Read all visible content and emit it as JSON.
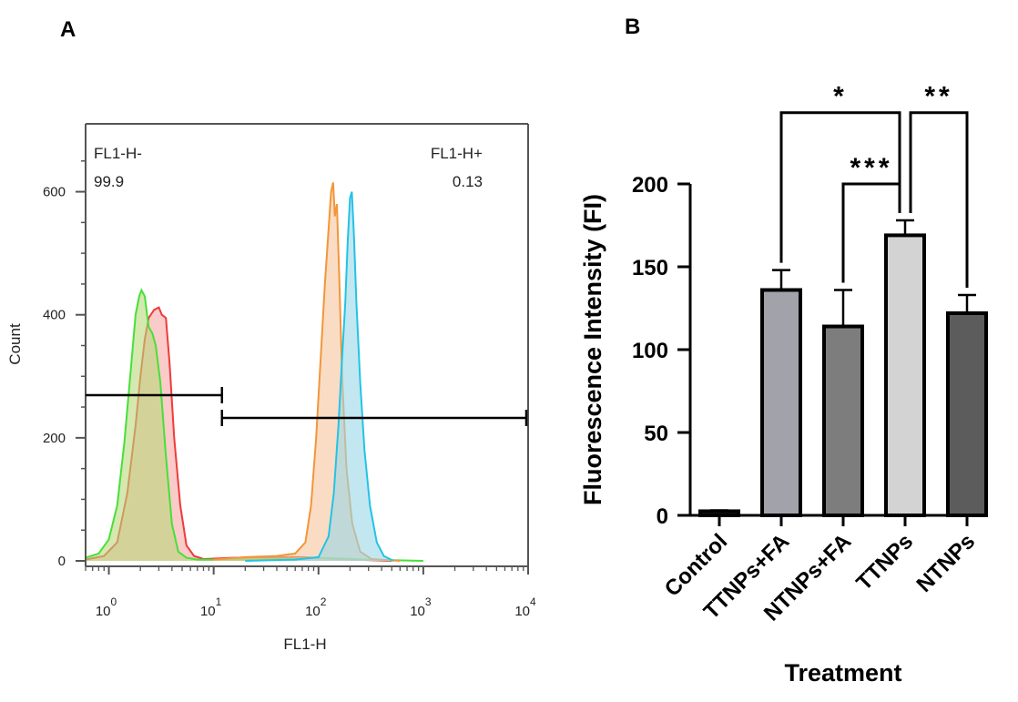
{
  "panels": {
    "a_label": "A",
    "b_label": "B"
  },
  "chart_data": [
    {
      "type": "area",
      "xlabel": "FL1-H",
      "ylabel": "Count",
      "x_scale": "log",
      "xlim": [
        0.6,
        10000
      ],
      "ylim": [
        0,
        700
      ],
      "x_ticks": [
        {
          "value": 1,
          "base": "10",
          "exp": "0"
        },
        {
          "value": 10,
          "base": "10",
          "exp": "1"
        },
        {
          "value": 100,
          "base": "10",
          "exp": "2"
        },
        {
          "value": 1000,
          "base": "10",
          "exp": "3"
        },
        {
          "value": 10000,
          "base": "10",
          "exp": "4"
        }
      ],
      "y_ticks": [
        0,
        200,
        400,
        600
      ],
      "gates": [
        {
          "label": "FL1-H-",
          "value": "99.9",
          "range": [
            0.6,
            12
          ]
        },
        {
          "label": "FL1-H+",
          "value": "0.13",
          "range": [
            12,
            10000
          ]
        }
      ],
      "series": [
        {
          "color": "#ee3b3b",
          "fill": "#f7a8a4",
          "points": [
            [
              0.6,
              2
            ],
            [
              0.9,
              8
            ],
            [
              1.2,
              30
            ],
            [
              1.5,
              110
            ],
            [
              1.8,
              220
            ],
            [
              2.0,
              300
            ],
            [
              2.2,
              360
            ],
            [
              2.4,
              395
            ],
            [
              2.7,
              408
            ],
            [
              3.0,
              412
            ],
            [
              3.2,
              400
            ],
            [
              3.5,
              395
            ],
            [
              3.8,
              320
            ],
            [
              4.2,
              200
            ],
            [
              4.8,
              90
            ],
            [
              5.5,
              25
            ],
            [
              6.5,
              8
            ],
            [
              8,
              3
            ],
            [
              15,
              5
            ],
            [
              30,
              6
            ],
            [
              70,
              6
            ],
            [
              150,
              3
            ],
            [
              500,
              0
            ]
          ]
        },
        {
          "color": "#46e03a",
          "fill": "#b9d87a",
          "points": [
            [
              0.6,
              5
            ],
            [
              0.8,
              12
            ],
            [
              1.0,
              35
            ],
            [
              1.2,
              90
            ],
            [
              1.4,
              190
            ],
            [
              1.6,
              300
            ],
            [
              1.8,
              400
            ],
            [
              1.95,
              430
            ],
            [
              2.05,
              440
            ],
            [
              2.2,
              430
            ],
            [
              2.4,
              380
            ],
            [
              2.6,
              370
            ],
            [
              2.8,
              350
            ],
            [
              3.1,
              290
            ],
            [
              3.5,
              170
            ],
            [
              4.0,
              60
            ],
            [
              4.6,
              15
            ],
            [
              5.5,
              5
            ],
            [
              7,
              2
            ],
            [
              20,
              2
            ],
            [
              100,
              5
            ],
            [
              300,
              2
            ],
            [
              1000,
              0
            ]
          ]
        },
        {
          "color": "#f2963a",
          "fill": "#f7c59c",
          "points": [
            [
              10,
              2
            ],
            [
              20,
              6
            ],
            [
              40,
              8
            ],
            [
              60,
              12
            ],
            [
              75,
              30
            ],
            [
              85,
              90
            ],
            [
              95,
              200
            ],
            [
              105,
              330
            ],
            [
              115,
              450
            ],
            [
              125,
              540
            ],
            [
              132,
              600
            ],
            [
              138,
              615
            ],
            [
              143,
              560
            ],
            [
              150,
              580
            ],
            [
              158,
              460
            ],
            [
              168,
              300
            ],
            [
              185,
              150
            ],
            [
              210,
              60
            ],
            [
              250,
              15
            ],
            [
              320,
              3
            ],
            [
              600,
              0
            ]
          ]
        },
        {
          "color": "#23c3e6",
          "fill": "#9ad7e6",
          "points": [
            [
              20,
              0
            ],
            [
              60,
              2
            ],
            [
              100,
              6
            ],
            [
              125,
              40
            ],
            [
              140,
              110
            ],
            [
              155,
              220
            ],
            [
              168,
              330
            ],
            [
              180,
              420
            ],
            [
              190,
              520
            ],
            [
              200,
              590
            ],
            [
              208,
              600
            ],
            [
              218,
              530
            ],
            [
              230,
              420
            ],
            [
              250,
              290
            ],
            [
              275,
              180
            ],
            [
              310,
              90
            ],
            [
              360,
              30
            ],
            [
              420,
              8
            ],
            [
              520,
              0
            ]
          ]
        }
      ]
    },
    {
      "type": "bar",
      "xlabel": "Treatment",
      "ylabel": "Fluorescence Intensity (FI)",
      "ylim": [
        0,
        200
      ],
      "y_ticks": [
        0,
        50,
        100,
        150,
        200
      ],
      "categories": [
        "Control",
        "TTNPs+FA",
        "NTNPs+FA",
        "TTNPs",
        "NTNPs"
      ],
      "values": [
        2.5,
        136,
        114,
        169,
        122
      ],
      "errors": [
        0.5,
        12,
        22,
        9,
        11
      ],
      "bar_colors": [
        "#222222",
        "#a2a2aa",
        "#7d7d7d",
        "#d3d3d3",
        "#5c5c5c"
      ],
      "significance": [
        {
          "from": 1,
          "to": 3,
          "label": "*",
          "y": 243
        },
        {
          "from": 2,
          "to": 3,
          "label": "***",
          "y": 200
        },
        {
          "from": 3,
          "to": 4,
          "label": "**",
          "y": 243
        }
      ]
    }
  ]
}
